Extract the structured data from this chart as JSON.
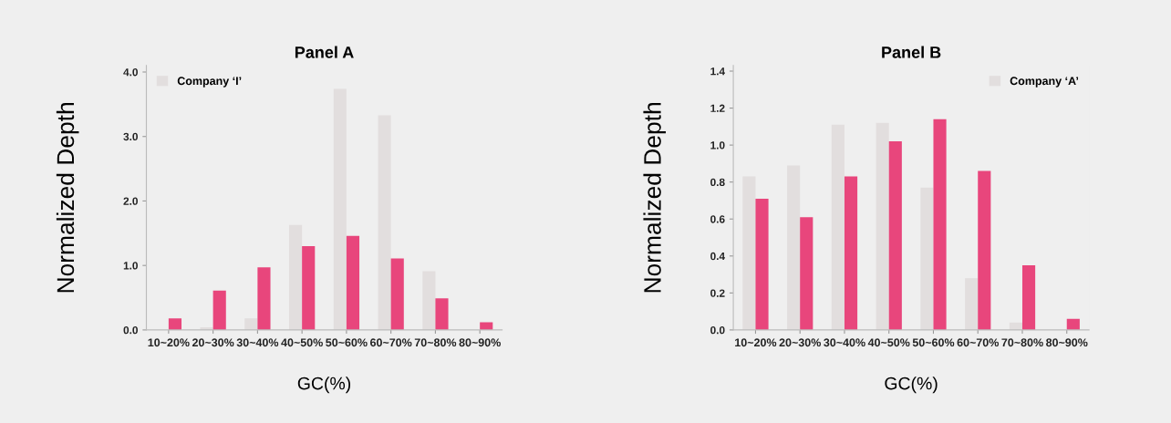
{
  "chart_data": [
    {
      "type": "bar",
      "title": "Panel A",
      "xlabel": "GC(%)",
      "ylabel": "Normalized Depth",
      "categories": [
        "10~20%",
        "20~30%",
        "30~40%",
        "40~50%",
        "50~60%",
        "60~70%",
        "70~80%",
        "80~90%"
      ],
      "series": [
        {
          "name": "Company ‘I’",
          "color": "#e2dede",
          "values": [
            0,
            0.04,
            0.18,
            1.63,
            3.74,
            3.33,
            0.91,
            0
          ]
        },
        {
          "color": "#e8467c",
          "values": [
            0.18,
            0.61,
            0.97,
            1.3,
            1.46,
            1.11,
            0.49,
            0.12
          ]
        }
      ],
      "ylim": [
        0,
        4.1
      ],
      "yticks": [
        {
          "value": 0,
          "label": "0.0"
        },
        {
          "value": 1,
          "label": "1.0"
        },
        {
          "value": 2,
          "label": "2.0"
        },
        {
          "value": 3,
          "label": "3.0"
        },
        {
          "value": 4,
          "label": "4.0"
        }
      ],
      "grid": false,
      "legend": "top left"
    },
    {
      "type": "bar",
      "title": "Panel B",
      "xlabel": "GC(%)",
      "ylabel": "Normalized Depth",
      "categories": [
        "10~20%",
        "20~30%",
        "30~40%",
        "40~50%",
        "50~60%",
        "60~70%",
        "70~80%",
        "80~90%"
      ],
      "series": [
        {
          "name": "Company ‘A’",
          "color": "#e2dede",
          "values": [
            0.83,
            0.89,
            1.11,
            1.12,
            0.77,
            0.28,
            0.04,
            0
          ]
        },
        {
          "color": "#e8467c",
          "values": [
            0.71,
            0.61,
            0.83,
            1.02,
            1.14,
            0.86,
            0.35,
            0.06
          ]
        }
      ],
      "ylim": [
        0,
        1.43
      ],
      "yticks": [
        {
          "value": 0,
          "label": "0.0"
        },
        {
          "value": 0.2,
          "label": "0.2"
        },
        {
          "value": 0.4,
          "label": "0.4"
        },
        {
          "value": 0.6,
          "label": "0.6"
        },
        {
          "value": 0.8,
          "label": "0.8"
        },
        {
          "value": 1,
          "label": "1.0"
        },
        {
          "value": 1.2,
          "label": "1.2"
        },
        {
          "value": 1.4,
          "label": "1.4"
        }
      ],
      "grid": false,
      "legend": "top right"
    }
  ]
}
